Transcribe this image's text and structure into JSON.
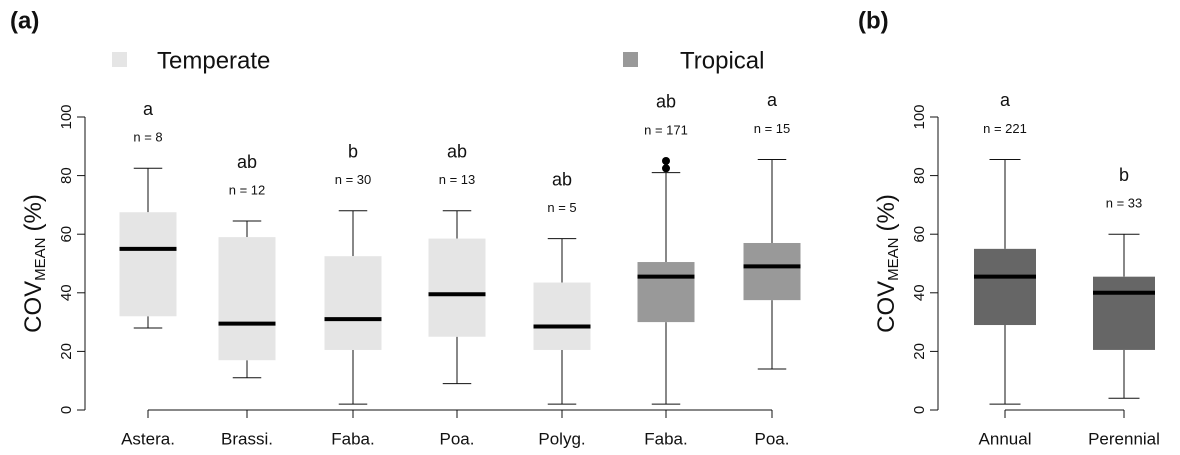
{
  "chart_data": [
    {
      "type": "boxplot",
      "panel_label": "(a)",
      "ylabel": "COV",
      "ylabel_sub": "MEAN",
      "ylabel_unit": "(%)",
      "legend": [
        {
          "name": "Temperate",
          "color": "#e5e5e5"
        },
        {
          "name": "Tropical",
          "color": "#999999"
        }
      ],
      "categories": [
        "Astera.",
        "Brassi.",
        "Faba.",
        "Poa.",
        "Polyg.",
        "Faba.",
        "Poa."
      ],
      "colors": [
        "#e5e5e5",
        "#e5e5e5",
        "#e5e5e5",
        "#e5e5e5",
        "#e5e5e5",
        "#999999",
        "#999999"
      ],
      "whisker_low": [
        28,
        11,
        2,
        9,
        2,
        2,
        14
      ],
      "q1": [
        32,
        17,
        20.5,
        25,
        20.5,
        30,
        37.5
      ],
      "median": [
        55,
        29.5,
        31,
        39.5,
        28.5,
        45.5,
        49
      ],
      "q3": [
        67.5,
        59,
        52.5,
        58.5,
        43.5,
        50.5,
        57
      ],
      "whisker_high": [
        82.5,
        64.5,
        68,
        68,
        58.5,
        81,
        85.5
      ],
      "outliers": [
        [],
        [],
        [],
        [],
        [],
        [
          85,
          82.5
        ],
        []
      ],
      "letters": [
        "a",
        "ab",
        "b",
        "ab",
        "ab",
        "ab",
        "a"
      ],
      "n_labels": [
        "n = 8",
        "n = 12",
        "n = 30",
        "n = 13",
        "n = 5",
        "n = 171",
        "n = 15"
      ],
      "ylim": [
        0,
        100
      ],
      "yticks": [
        0,
        20,
        40,
        60,
        80,
        100
      ]
    },
    {
      "type": "boxplot",
      "panel_label": "(b)",
      "ylabel": "COV",
      "ylabel_sub": "MEAN",
      "ylabel_unit": "(%)",
      "categories": [
        "Annual",
        "Perennial"
      ],
      "colors": [
        "#666666",
        "#666666"
      ],
      "whisker_low": [
        2,
        4
      ],
      "q1": [
        29,
        20.5
      ],
      "median": [
        45.5,
        40
      ],
      "q3": [
        55,
        45.5
      ],
      "whisker_high": [
        85.5,
        60
      ],
      "outliers": [
        [],
        []
      ],
      "letters": [
        "a",
        "b"
      ],
      "n_labels": [
        "n = 221",
        "n = 33"
      ],
      "ylim": [
        0,
        100
      ],
      "yticks": [
        0,
        20,
        40,
        60,
        80,
        100
      ]
    }
  ]
}
